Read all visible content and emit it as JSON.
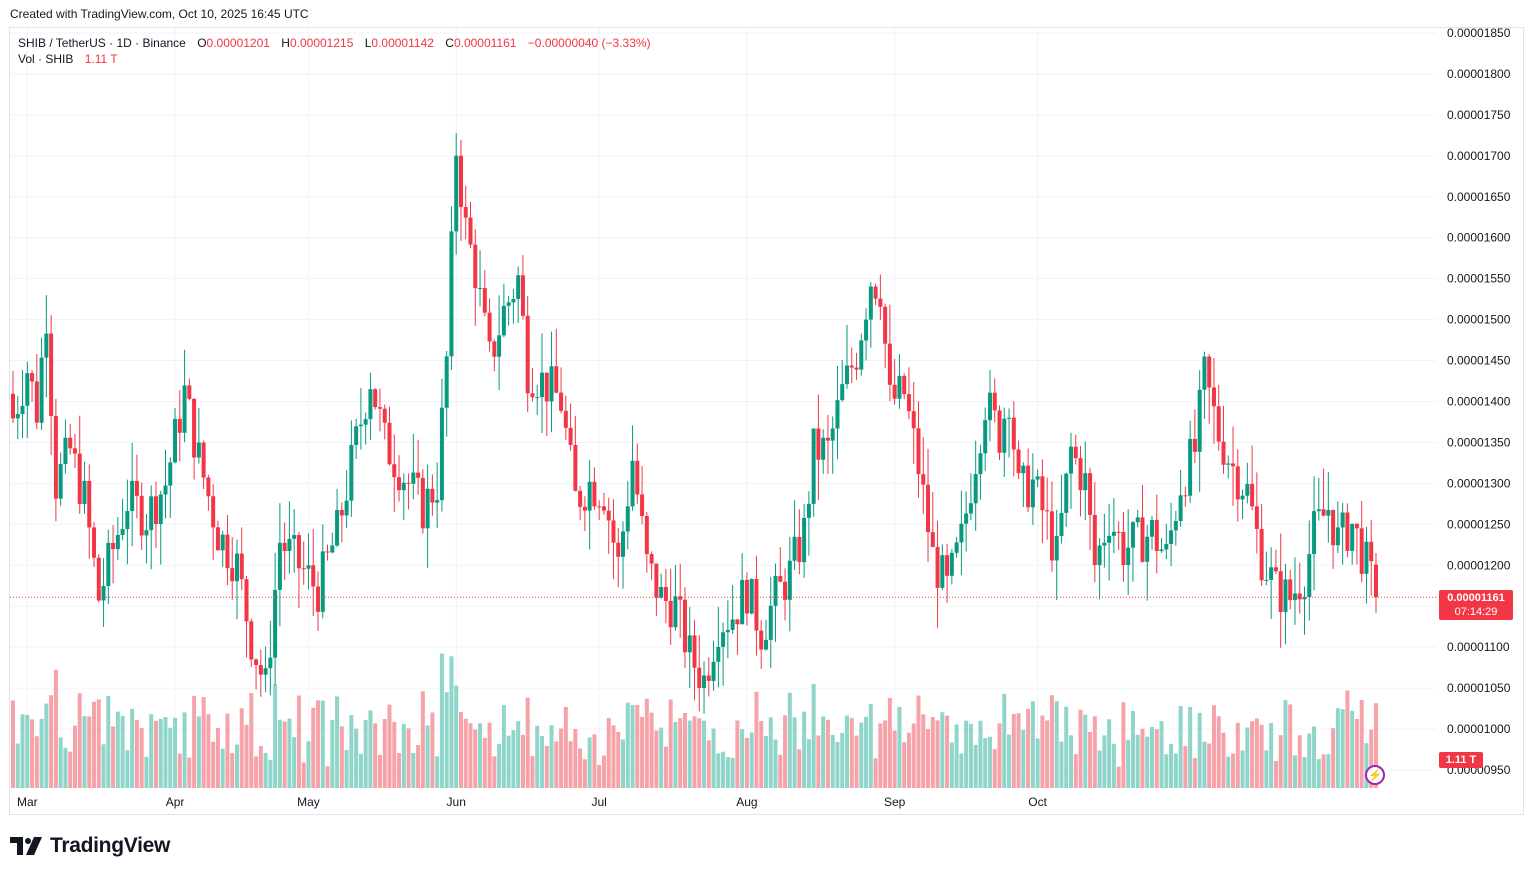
{
  "header": {
    "created": "Created with TradingView.com, Oct 10, 2025 16:45 UTC"
  },
  "legend": {
    "symbol": "SHIB / TetherUS · 1D · Binance",
    "o_label": "O",
    "o_value": "0.00001201",
    "h_label": "H",
    "h_value": "0.00001215",
    "l_label": "L",
    "l_value": "0.00001142",
    "c_label": "C",
    "c_value": "0.00001161",
    "change": "−0.00000040 (−3.33%)",
    "vol_label": "Vol · SHIB",
    "vol_value": "1.11 T"
  },
  "price_badge": {
    "price": "0.00001161",
    "countdown": "07:14:29"
  },
  "volume_badge": "1.11 T",
  "logo": {
    "text": "TradingView"
  },
  "colors": {
    "up": "#089981",
    "down": "#f23645",
    "up_vol": "#8fd5ca",
    "down_vol": "#f5a3a9",
    "grid": "#f0f3fa",
    "last_line": "#f23645"
  },
  "chart_data": {
    "type": "candlestick",
    "symbol": "SHIB / TetherUS",
    "interval": "1D",
    "exchange": "Binance",
    "y_axis": {
      "ticks": [
        "0.00000950",
        "0.00001000",
        "0.00001050",
        "0.00001100",
        "0.00001150",
        "0.00001200",
        "0.00001250",
        "0.00001300",
        "0.00001350",
        "0.00001400",
        "0.00001450",
        "0.00001500",
        "0.00001550",
        "0.00001600",
        "0.00001650",
        "0.00001700",
        "0.00001750",
        "0.00001800",
        "0.00001850"
      ],
      "range": [
        9.4e-06,
        1.86e-05
      ]
    },
    "x_axis": {
      "ticks": [
        "Mar",
        "Apr",
        "May",
        "Jun",
        "Jul",
        "Aug",
        "Sep",
        "Oct"
      ]
    },
    "grid": true,
    "last_price": 1.161e-05,
    "anchors_close": [
      [
        0,
        1.38e-05
      ],
      [
        3,
        1.44e-05
      ],
      [
        5,
        1.39e-05
      ],
      [
        7,
        1.51e-05
      ],
      [
        9,
        1.3e-05
      ],
      [
        12,
        1.34e-05
      ],
      [
        15,
        1.28e-05
      ],
      [
        18,
        1.16e-05
      ],
      [
        21,
        1.22e-05
      ],
      [
        24,
        1.28e-05
      ],
      [
        28,
        1.26e-05
      ],
      [
        32,
        1.3e-05
      ],
      [
        36,
        1.41e-05
      ],
      [
        39,
        1.33e-05
      ],
      [
        43,
        1.24e-05
      ],
      [
        47,
        1.2e-05
      ],
      [
        50,
        1.11e-05
      ],
      [
        53,
        1.05e-05
      ],
      [
        56,
        1.23e-05
      ],
      [
        60,
        1.2e-05
      ],
      [
        64,
        1.17e-05
      ],
      [
        68,
        1.24e-05
      ],
      [
        72,
        1.35e-05
      ],
      [
        75,
        1.43e-05
      ],
      [
        78,
        1.35e-05
      ],
      [
        82,
        1.31e-05
      ],
      [
        86,
        1.27e-05
      ],
      [
        89,
        1.3e-05
      ],
      [
        91,
        1.45e-05
      ],
      [
        93,
        1.71e-05
      ],
      [
        95,
        1.61e-05
      ],
      [
        97,
        1.56e-05
      ],
      [
        100,
        1.45e-05
      ],
      [
        103,
        1.51e-05
      ],
      [
        106,
        1.55e-05
      ],
      [
        108,
        1.44e-05
      ],
      [
        112,
        1.42e-05
      ],
      [
        115,
        1.4e-05
      ],
      [
        118,
        1.28e-05
      ],
      [
        121,
        1.3e-05
      ],
      [
        124,
        1.29e-05
      ],
      [
        127,
        1.2e-05
      ],
      [
        130,
        1.33e-05
      ],
      [
        133,
        1.2e-05
      ],
      [
        136,
        1.16e-05
      ],
      [
        139,
        1.15e-05
      ],
      [
        142,
        1.09e-05
      ],
      [
        145,
        1.06e-05
      ],
      [
        148,
        1.13e-05
      ],
      [
        151,
        1.14e-05
      ],
      [
        154,
        1.17e-05
      ],
      [
        157,
        1.12e-05
      ],
      [
        160,
        1.16e-05
      ],
      [
        163,
        1.19e-05
      ],
      [
        166,
        1.24e-05
      ],
      [
        168,
        1.34e-05
      ],
      [
        171,
        1.34e-05
      ],
      [
        174,
        1.41e-05
      ],
      [
        177,
        1.46e-05
      ],
      [
        180,
        1.55e-05
      ],
      [
        182,
        1.54e-05
      ],
      [
        184,
        1.4e-05
      ],
      [
        187,
        1.41e-05
      ],
      [
        190,
        1.32e-05
      ],
      [
        193,
        1.21e-05
      ],
      [
        196,
        1.17e-05
      ],
      [
        199,
        1.23e-05
      ],
      [
        201,
        1.3e-05
      ],
      [
        204,
        1.4e-05
      ],
      [
        207,
        1.36e-05
      ],
      [
        209,
        1.41e-05
      ],
      [
        211,
        1.29e-05
      ],
      [
        214,
        1.3e-05
      ],
      [
        217,
        1.25e-05
      ],
      [
        219,
        1.21e-05
      ],
      [
        222,
        1.34e-05
      ],
      [
        225,
        1.3e-05
      ],
      [
        227,
        1.2e-05
      ],
      [
        230,
        1.26e-05
      ],
      [
        233,
        1.22e-05
      ],
      [
        236,
        1.23e-05
      ],
      [
        239,
        1.24e-05
      ],
      [
        242,
        1.21e-05
      ],
      [
        245,
        1.3e-05
      ],
      [
        248,
        1.34e-05
      ],
      [
        250,
        1.43e-05
      ],
      [
        253,
        1.36e-05
      ],
      [
        256,
        1.32e-05
      ],
      [
        259,
        1.29e-05
      ],
      [
        262,
        1.21e-05
      ],
      [
        265,
        1.17e-05
      ],
      [
        268,
        1.16e-05
      ],
      [
        271,
        1.19e-05
      ],
      [
        273,
        1.24e-05
      ],
      [
        276,
        1.27e-05
      ],
      [
        278,
        1.23e-05
      ],
      [
        281,
        1.25e-05
      ],
      [
        284,
        1.2e-05
      ],
      [
        286,
        1.161e-05
      ]
    ]
  }
}
